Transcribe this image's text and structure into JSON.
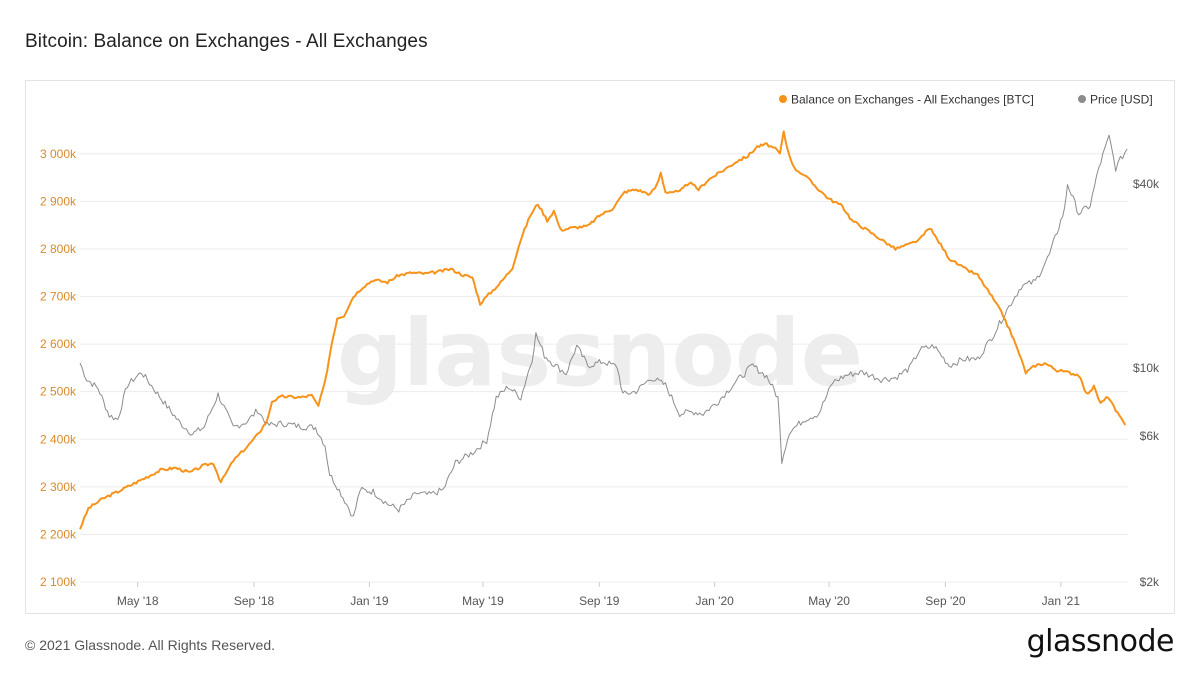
{
  "title": "Bitcoin: Balance on Exchanges - All Exchanges",
  "footer": "© 2021 Glassnode. All Rights Reserved.",
  "logo_text": "glassnode",
  "watermark": "glassnode",
  "colors": {
    "balance": "#f7931a",
    "price": "#8c8c8c",
    "left_axis_text": "#d98a2b",
    "axis_text": "#555555",
    "grid": "#ececec",
    "watermark": "#ededed"
  },
  "chart_data": {
    "type": "line",
    "legend_position": "top-right",
    "grid": true,
    "x_ticks": [
      "May '18",
      "Sep '18",
      "Jan '19",
      "May '19",
      "Sep '19",
      "Jan '20",
      "May '20",
      "Sep '20",
      "Jan '21"
    ],
    "y_left": {
      "ticks": [
        "2 100k",
        "2 200k",
        "2 300k",
        "2 400k",
        "2 500k",
        "2 600k",
        "2 700k",
        "2 800k",
        "2 900k",
        "3 000k"
      ],
      "range": [
        2100000,
        3050000
      ]
    },
    "y_right": {
      "scale": "log",
      "ticks": [
        {
          "label": "$2k",
          "value": 2000
        },
        {
          "label": "$6k",
          "value": 6000
        },
        {
          "label": "$10k",
          "value": 10000
        },
        {
          "label": "$40k",
          "value": 40000
        }
      ],
      "range": [
        2000,
        60000
      ]
    },
    "series": [
      {
        "name": "Balance on Exchanges - All Exchanges [BTC]",
        "axis": "left",
        "points": [
          [
            "2018-03-01",
            2212000
          ],
          [
            "2018-03-10",
            2255000
          ],
          [
            "2018-03-25",
            2275000
          ],
          [
            "2018-04-10",
            2290000
          ],
          [
            "2018-04-25",
            2305000
          ],
          [
            "2018-05-10",
            2320000
          ],
          [
            "2018-05-25",
            2335000
          ],
          [
            "2018-06-10",
            2340000
          ],
          [
            "2018-06-25",
            2330000
          ],
          [
            "2018-07-10",
            2345000
          ],
          [
            "2018-07-20",
            2350000
          ],
          [
            "2018-07-28",
            2310000
          ],
          [
            "2018-08-10",
            2355000
          ],
          [
            "2018-08-25",
            2385000
          ],
          [
            "2018-09-05",
            2410000
          ],
          [
            "2018-09-15",
            2440000
          ],
          [
            "2018-09-20",
            2480000
          ],
          [
            "2018-10-01",
            2490000
          ],
          [
            "2018-10-20",
            2488000
          ],
          [
            "2018-11-01",
            2492000
          ],
          [
            "2018-11-08",
            2470000
          ],
          [
            "2018-11-15",
            2520000
          ],
          [
            "2018-11-22",
            2600000
          ],
          [
            "2018-11-28",
            2655000
          ],
          [
            "2018-12-05",
            2660000
          ],
          [
            "2018-12-15",
            2700000
          ],
          [
            "2018-12-25",
            2720000
          ],
          [
            "2019-01-05",
            2735000
          ],
          [
            "2019-01-20",
            2730000
          ],
          [
            "2019-02-01",
            2745000
          ],
          [
            "2019-02-15",
            2750000
          ],
          [
            "2019-03-01",
            2748000
          ],
          [
            "2019-03-15",
            2752000
          ],
          [
            "2019-03-28",
            2758000
          ],
          [
            "2019-04-10",
            2745000
          ],
          [
            "2019-04-20",
            2740000
          ],
          [
            "2019-04-28",
            2685000
          ],
          [
            "2019-05-05",
            2700000
          ],
          [
            "2019-05-20",
            2730000
          ],
          [
            "2019-06-01",
            2760000
          ],
          [
            "2019-06-10",
            2820000
          ],
          [
            "2019-06-20",
            2870000
          ],
          [
            "2019-06-28",
            2895000
          ],
          [
            "2019-07-08",
            2860000
          ],
          [
            "2019-07-15",
            2880000
          ],
          [
            "2019-07-22",
            2840000
          ],
          [
            "2019-08-05",
            2845000
          ],
          [
            "2019-08-20",
            2848000
          ],
          [
            "2019-09-01",
            2870000
          ],
          [
            "2019-09-15",
            2885000
          ],
          [
            "2019-09-28",
            2920000
          ],
          [
            "2019-10-10",
            2925000
          ],
          [
            "2019-10-25",
            2915000
          ],
          [
            "2019-11-01",
            2935000
          ],
          [
            "2019-11-05",
            2960000
          ],
          [
            "2019-11-10",
            2920000
          ],
          [
            "2019-11-25",
            2920000
          ],
          [
            "2019-12-05",
            2940000
          ],
          [
            "2019-12-15",
            2925000
          ],
          [
            "2019-12-25",
            2945000
          ],
          [
            "2020-01-10",
            2965000
          ],
          [
            "2020-01-25",
            2985000
          ],
          [
            "2020-02-05",
            2995000
          ],
          [
            "2020-02-15",
            3015000
          ],
          [
            "2020-02-25",
            3020000
          ],
          [
            "2020-03-05",
            3010000
          ],
          [
            "2020-03-10",
            3000000
          ],
          [
            "2020-03-14",
            3045000
          ],
          [
            "2020-03-18",
            3010000
          ],
          [
            "2020-03-25",
            2970000
          ],
          [
            "2020-04-05",
            2955000
          ],
          [
            "2020-04-20",
            2925000
          ],
          [
            "2020-05-01",
            2905000
          ],
          [
            "2020-05-15",
            2890000
          ],
          [
            "2020-05-25",
            2860000
          ],
          [
            "2020-06-10",
            2840000
          ],
          [
            "2020-06-25",
            2820000
          ],
          [
            "2020-07-10",
            2800000
          ],
          [
            "2020-07-25",
            2810000
          ],
          [
            "2020-08-05",
            2820000
          ],
          [
            "2020-08-15",
            2845000
          ],
          [
            "2020-08-25",
            2815000
          ],
          [
            "2020-09-05",
            2780000
          ],
          [
            "2020-09-20",
            2760000
          ],
          [
            "2020-10-05",
            2745000
          ],
          [
            "2020-10-20",
            2700000
          ],
          [
            "2020-11-01",
            2660000
          ],
          [
            "2020-11-10",
            2620000
          ],
          [
            "2020-11-18",
            2580000
          ],
          [
            "2020-11-25",
            2540000
          ],
          [
            "2020-12-05",
            2555000
          ],
          [
            "2020-12-15",
            2560000
          ],
          [
            "2020-12-28",
            2545000
          ],
          [
            "2021-01-10",
            2540000
          ],
          [
            "2021-01-20",
            2535000
          ],
          [
            "2021-01-28",
            2495000
          ],
          [
            "2021-02-05",
            2510000
          ],
          [
            "2021-02-12",
            2475000
          ],
          [
            "2021-02-20",
            2490000
          ],
          [
            "2021-02-28",
            2460000
          ],
          [
            "2021-03-10",
            2430000
          ]
        ]
      },
      {
        "name": "Price [USD]",
        "axis": "right",
        "points": [
          [
            "2018-03-01",
            10400
          ],
          [
            "2018-03-08",
            9200
          ],
          [
            "2018-03-20",
            8600
          ],
          [
            "2018-04-01",
            7000
          ],
          [
            "2018-04-10",
            6800
          ],
          [
            "2018-04-20",
            8800
          ],
          [
            "2018-05-05",
            9700
          ],
          [
            "2018-05-20",
            8400
          ],
          [
            "2018-06-01",
            7500
          ],
          [
            "2018-06-15",
            6600
          ],
          [
            "2018-06-28",
            6100
          ],
          [
            "2018-07-10",
            6400
          ],
          [
            "2018-07-25",
            8200
          ],
          [
            "2018-08-10",
            6400
          ],
          [
            "2018-08-25",
            6700
          ],
          [
            "2018-09-05",
            7300
          ],
          [
            "2018-09-15",
            6500
          ],
          [
            "2018-10-01",
            6600
          ],
          [
            "2018-10-20",
            6450
          ],
          [
            "2018-11-05",
            6400
          ],
          [
            "2018-11-15",
            5600
          ],
          [
            "2018-11-20",
            4500
          ],
          [
            "2018-11-28",
            4100
          ],
          [
            "2018-12-10",
            3500
          ],
          [
            "2018-12-15",
            3250
          ],
          [
            "2018-12-22",
            4000
          ],
          [
            "2019-01-05",
            3950
          ],
          [
            "2019-01-20",
            3600
          ],
          [
            "2019-02-01",
            3450
          ],
          [
            "2019-02-20",
            3900
          ],
          [
            "2019-03-05",
            3850
          ],
          [
            "2019-03-20",
            4000
          ],
          [
            "2019-04-02",
            4900
          ],
          [
            "2019-04-20",
            5300
          ],
          [
            "2019-05-05",
            5800
          ],
          [
            "2019-05-15",
            8000
          ],
          [
            "2019-05-28",
            8700
          ],
          [
            "2019-06-10",
            8000
          ],
          [
            "2019-06-22",
            10700
          ],
          [
            "2019-06-26",
            12900
          ],
          [
            "2019-07-05",
            11000
          ],
          [
            "2019-07-15",
            10300
          ],
          [
            "2019-07-28",
            9600
          ],
          [
            "2019-08-08",
            11800
          ],
          [
            "2019-08-20",
            10200
          ],
          [
            "2019-09-05",
            10500
          ],
          [
            "2019-09-20",
            10100
          ],
          [
            "2019-09-26",
            8200
          ],
          [
            "2019-10-10",
            8400
          ],
          [
            "2019-10-26",
            9300
          ],
          [
            "2019-11-10",
            8800
          ],
          [
            "2019-11-25",
            7100
          ],
          [
            "2019-12-10",
            7200
          ],
          [
            "2019-12-20",
            7100
          ],
          [
            "2020-01-05",
            7800
          ],
          [
            "2020-01-20",
            8800
          ],
          [
            "2020-02-10",
            10200
          ],
          [
            "2020-02-25",
            9400
          ],
          [
            "2020-03-08",
            8000
          ],
          [
            "2020-03-12",
            5000
          ],
          [
            "2020-03-20",
            6200
          ],
          [
            "2020-04-05",
            6800
          ],
          [
            "2020-04-20",
            7100
          ],
          [
            "2020-05-05",
            9000
          ],
          [
            "2020-05-20",
            9500
          ],
          [
            "2020-06-05",
            9700
          ],
          [
            "2020-06-25",
            9200
          ],
          [
            "2020-07-10",
            9300
          ],
          [
            "2020-07-25",
            10000
          ],
          [
            "2020-08-05",
            11500
          ],
          [
            "2020-08-20",
            11800
          ],
          [
            "2020-09-05",
            10200
          ],
          [
            "2020-09-20",
            10700
          ],
          [
            "2020-10-05",
            10700
          ],
          [
            "2020-10-22",
            12900
          ],
          [
            "2020-11-05",
            15500
          ],
          [
            "2020-11-20",
            18500
          ],
          [
            "2020-12-05",
            19200
          ],
          [
            "2020-12-20",
            23500
          ],
          [
            "2021-01-05",
            33000
          ],
          [
            "2021-01-08",
            40000
          ],
          [
            "2021-01-20",
            32000
          ],
          [
            "2021-02-01",
            34000
          ],
          [
            "2021-02-10",
            45000
          ],
          [
            "2021-02-21",
            57000
          ],
          [
            "2021-02-28",
            45000
          ],
          [
            "2021-03-05",
            48000
          ],
          [
            "2021-03-12",
            52000
          ]
        ]
      }
    ]
  }
}
